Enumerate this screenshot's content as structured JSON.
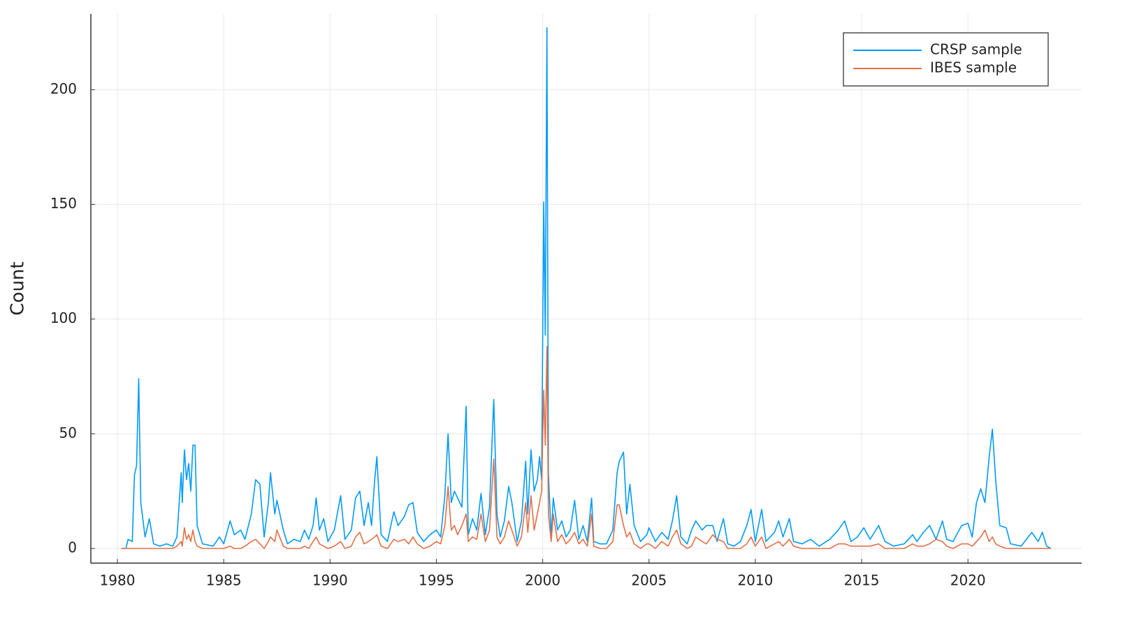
{
  "chart_data": {
    "type": "line",
    "ylabel": "Count",
    "x": [
      1980.2,
      1980.4,
      1980.5,
      1980.7,
      1980.8,
      1980.9,
      1981.0,
      1981.1,
      1981.3,
      1981.5,
      1981.7,
      1982.0,
      1982.3,
      1982.6,
      1982.8,
      1983.0,
      1983.05,
      1983.15,
      1983.25,
      1983.35,
      1983.45,
      1983.55,
      1983.65,
      1983.75,
      1984.0,
      1984.5,
      1984.8,
      1985.0,
      1985.3,
      1985.5,
      1985.8,
      1986.0,
      1986.3,
      1986.5,
      1986.7,
      1986.9,
      1987.1,
      1987.2,
      1987.4,
      1987.5,
      1987.8,
      1988.0,
      1988.3,
      1988.6,
      1988.8,
      1989.0,
      1989.2,
      1989.35,
      1989.5,
      1989.7,
      1989.9,
      1990.2,
      1990.5,
      1990.7,
      1991.0,
      1991.2,
      1991.4,
      1991.6,
      1991.8,
      1991.95,
      1992.1,
      1992.2,
      1992.4,
      1992.7,
      1993.0,
      1993.2,
      1993.5,
      1993.7,
      1993.9,
      1994.1,
      1994.4,
      1994.7,
      1995.0,
      1995.2,
      1995.4,
      1995.55,
      1995.7,
      1995.85,
      1996.0,
      1996.2,
      1996.4,
      1996.5,
      1996.7,
      1996.9,
      1997.1,
      1997.3,
      1997.5,
      1997.7,
      1997.85,
      1998.0,
      1998.2,
      1998.4,
      1998.55,
      1998.8,
      1999.0,
      1999.2,
      1999.3,
      1999.45,
      1999.6,
      1999.75,
      1999.85,
      1999.95,
      2000.05,
      2000.12,
      2000.2,
      2000.27,
      2000.4,
      2000.5,
      2000.7,
      2000.9,
      2001.1,
      2001.3,
      2001.5,
      2001.7,
      2001.9,
      2002.1,
      2002.3,
      2002.4,
      2002.7,
      2003.0,
      2003.3,
      2003.5,
      2003.6,
      2003.8,
      2003.95,
      2004.1,
      2004.3,
      2004.6,
      2004.9,
      2005.0,
      2005.3,
      2005.6,
      2005.9,
      2006.1,
      2006.3,
      2006.5,
      2006.8,
      2007.0,
      2007.2,
      2007.5,
      2007.7,
      2008.0,
      2008.2,
      2008.5,
      2008.7,
      2009.0,
      2009.3,
      2009.6,
      2009.8,
      2010.0,
      2010.3,
      2010.5,
      2010.9,
      2011.1,
      2011.3,
      2011.6,
      2011.8,
      2012.2,
      2012.6,
      2013.0,
      2013.5,
      2013.9,
      2014.2,
      2014.5,
      2014.8,
      2015.1,
      2015.4,
      2015.8,
      2016.1,
      2016.5,
      2017.0,
      2017.4,
      2017.6,
      2017.9,
      2018.2,
      2018.5,
      2018.8,
      2019.0,
      2019.3,
      2019.7,
      2020.0,
      2020.2,
      2020.4,
      2020.6,
      2020.8,
      2021.0,
      2021.15,
      2021.3,
      2021.5,
      2021.8,
      2022.0,
      2022.5,
      2023.0,
      2023.3,
      2023.5,
      2023.7,
      2023.9
    ],
    "series": [
      {
        "name": "CRSP sample",
        "color": "#009afa",
        "values": [
          0,
          0,
          4,
          3,
          32,
          36,
          74,
          20,
          5,
          13,
          2,
          1,
          2,
          1,
          5,
          33,
          20,
          43,
          30,
          37,
          25,
          45,
          45,
          10,
          2,
          1,
          5,
          2,
          12,
          6,
          8,
          4,
          15,
          30,
          28,
          5,
          20,
          33,
          15,
          21,
          8,
          2,
          4,
          3,
          8,
          4,
          10,
          22,
          8,
          13,
          3,
          8,
          23,
          4,
          8,
          22,
          25,
          10,
          20,
          10,
          30,
          40,
          6,
          3,
          16,
          10,
          14,
          19,
          20,
          7,
          3,
          6,
          8,
          5,
          23,
          50,
          20,
          25,
          22,
          18,
          62,
          6,
          13,
          8,
          24,
          6,
          18,
          65,
          15,
          5,
          12,
          27,
          20,
          3,
          12,
          38,
          15,
          43,
          25,
          30,
          40,
          30,
          151,
          93,
          227,
          33,
          5,
          22,
          8,
          12,
          5,
          8,
          21,
          4,
          10,
          3,
          22,
          3,
          2,
          2,
          8,
          33,
          38,
          42,
          15,
          28,
          10,
          3,
          6,
          9,
          3,
          7,
          4,
          12,
          23,
          5,
          2,
          8,
          12,
          8,
          10,
          10,
          3,
          13,
          2,
          1,
          3,
          10,
          17,
          3,
          17,
          3,
          7,
          12,
          5,
          13,
          3,
          2,
          4,
          1,
          4,
          8,
          12,
          3,
          5,
          9,
          4,
          10,
          3,
          1,
          2,
          6,
          3,
          7,
          10,
          4,
          12,
          4,
          3,
          10,
          11,
          5,
          20,
          26,
          20,
          40,
          52,
          30,
          10,
          9,
          2,
          1,
          7,
          3,
          7,
          1,
          0
        ]
      },
      {
        "name": "IBES sample",
        "color": "#e26f46",
        "values": [
          0,
          0,
          0,
          0,
          0,
          0,
          0,
          0,
          0,
          0,
          0,
          0,
          0,
          0,
          1,
          3,
          1,
          9,
          4,
          6,
          3,
          8,
          3,
          1,
          0,
          0,
          0,
          0,
          1,
          0,
          0,
          1,
          3,
          4,
          2,
          0,
          3,
          5,
          3,
          8,
          1,
          0,
          0,
          0,
          1,
          0,
          3,
          5,
          2,
          1,
          0,
          1,
          3,
          0,
          1,
          5,
          7,
          2,
          3,
          4,
          5,
          6,
          1,
          0,
          4,
          3,
          4,
          2,
          5,
          2,
          0,
          1,
          3,
          2,
          10,
          27,
          8,
          10,
          6,
          10,
          15,
          3,
          5,
          4,
          15,
          3,
          8,
          39,
          5,
          2,
          5,
          12,
          8,
          1,
          5,
          20,
          7,
          23,
          8,
          15,
          20,
          25,
          69,
          45,
          88,
          15,
          3,
          15,
          3,
          6,
          2,
          4,
          7,
          2,
          4,
          1,
          15,
          1,
          0,
          0,
          3,
          19,
          19,
          10,
          5,
          7,
          2,
          0,
          2,
          2,
          0,
          3,
          1,
          5,
          8,
          2,
          0,
          1,
          5,
          3,
          2,
          6,
          4,
          3,
          0,
          0,
          0,
          2,
          5,
          1,
          5,
          0,
          2,
          3,
          1,
          4,
          1,
          0,
          0,
          0,
          0,
          2,
          2,
          1,
          1,
          1,
          1,
          2,
          0,
          0,
          0,
          2,
          1,
          1,
          2,
          4,
          3,
          1,
          0,
          2,
          2,
          1,
          3,
          5,
          8,
          3,
          5,
          2,
          1,
          0,
          0,
          0,
          0,
          0,
          0,
          0,
          0
        ]
      }
    ],
    "xlim": [
      1978.75,
      2025.35
    ],
    "xticks": [
      1980,
      1985,
      1990,
      1995,
      2000,
      2005,
      2010,
      2015,
      2020
    ],
    "ylim": [
      -6.4,
      233
    ],
    "yticks": [
      0,
      50,
      100,
      150,
      200
    ],
    "grid": true,
    "legend": "top-right"
  }
}
